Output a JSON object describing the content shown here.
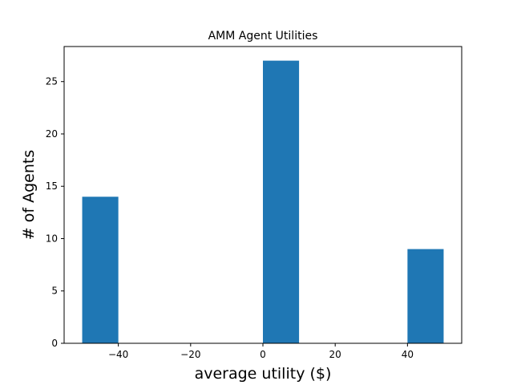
{
  "chart_data": {
    "type": "bar",
    "title": "AMM Agent Utilities",
    "xlabel": "average utility ($)",
    "ylabel": "# of Agents",
    "bins": [
      {
        "start": -50,
        "end": -40,
        "count": 14
      },
      {
        "start": -40,
        "end": -30,
        "count": 0
      },
      {
        "start": -30,
        "end": -20,
        "count": 0
      },
      {
        "start": -20,
        "end": -10,
        "count": 0
      },
      {
        "start": -10,
        "end": 0,
        "count": 0
      },
      {
        "start": 0,
        "end": 10,
        "count": 27
      },
      {
        "start": 10,
        "end": 20,
        "count": 0
      },
      {
        "start": 20,
        "end": 30,
        "count": 0
      },
      {
        "start": 30,
        "end": 40,
        "count": 0
      },
      {
        "start": 40,
        "end": 50,
        "count": 9
      }
    ],
    "xlim": [
      -55,
      55
    ],
    "ylim": [
      0,
      28.35
    ],
    "xticks": [
      -40,
      -20,
      0,
      20,
      40
    ],
    "xtick_labels": [
      "−40",
      "−20",
      "0",
      "20",
      "40"
    ],
    "yticks": [
      0,
      5,
      10,
      15,
      20,
      25
    ],
    "ytick_labels": [
      "0",
      "5",
      "10",
      "15",
      "20",
      "25"
    ],
    "bar_color": "#1f77b4",
    "grid": false
  }
}
